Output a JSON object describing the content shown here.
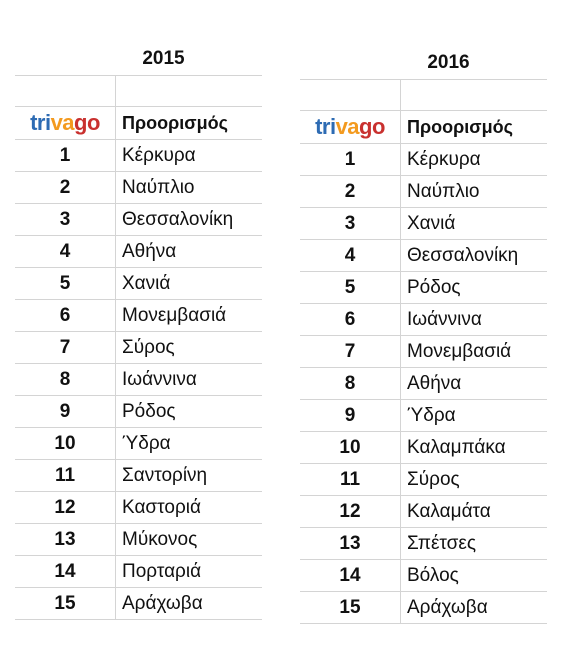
{
  "brand": {
    "name": "trivago",
    "parts": [
      "tri",
      "va",
      "go"
    ],
    "colors": {
      "blue": "#2d6bb3",
      "orange": "#f39a1f",
      "red": "#c9312f"
    }
  },
  "header_label": "Προορισμός",
  "tables": [
    {
      "year": "2015",
      "rows": [
        {
          "rank": "1",
          "destination": "Κέρκυρα"
        },
        {
          "rank": "2",
          "destination": "Ναύπλιο"
        },
        {
          "rank": "3",
          "destination": "Θεσσαλονίκη"
        },
        {
          "rank": "4",
          "destination": "Αθήνα"
        },
        {
          "rank": "5",
          "destination": "Χανιά"
        },
        {
          "rank": "6",
          "destination": "Μονεμβασιά"
        },
        {
          "rank": "7",
          "destination": "Σύρος"
        },
        {
          "rank": "8",
          "destination": "Ιωάννινα"
        },
        {
          "rank": "9",
          "destination": "Ρόδος"
        },
        {
          "rank": "10",
          "destination": "Ύδρα"
        },
        {
          "rank": "11",
          "destination": "Σαντορίνη"
        },
        {
          "rank": "12",
          "destination": "Καστοριά"
        },
        {
          "rank": "13",
          "destination": "Μύκονος"
        },
        {
          "rank": "14",
          "destination": "Πορταριά"
        },
        {
          "rank": "15",
          "destination": "Αράχωβα"
        }
      ]
    },
    {
      "year": "2016",
      "rows": [
        {
          "rank": "1",
          "destination": "Κέρκυρα"
        },
        {
          "rank": "2",
          "destination": "Ναύπλιο"
        },
        {
          "rank": "3",
          "destination": "Χανιά"
        },
        {
          "rank": "4",
          "destination": "Θεσσαλονίκη"
        },
        {
          "rank": "5",
          "destination": "Ρόδος"
        },
        {
          "rank": "6",
          "destination": "Ιωάννινα"
        },
        {
          "rank": "7",
          "destination": "Μονεμβασιά"
        },
        {
          "rank": "8",
          "destination": "Αθήνα"
        },
        {
          "rank": "9",
          "destination": "Ύδρα"
        },
        {
          "rank": "10",
          "destination": "Καλαμπάκα"
        },
        {
          "rank": "11",
          "destination": "Σύρος"
        },
        {
          "rank": "12",
          "destination": "Καλαμάτα"
        },
        {
          "rank": "13",
          "destination": "Σπέτσες"
        },
        {
          "rank": "14",
          "destination": "Βόλος"
        },
        {
          "rank": "15",
          "destination": "Αράχωβα"
        }
      ]
    }
  ]
}
